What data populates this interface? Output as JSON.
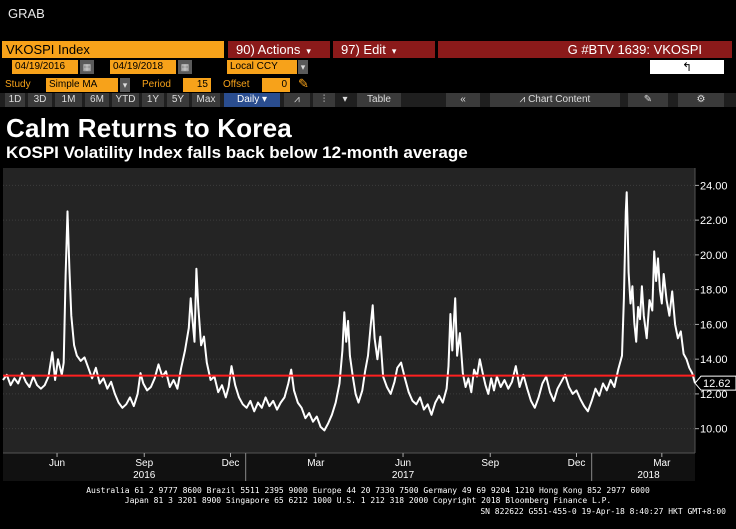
{
  "app": {
    "grab_label": "GRAB"
  },
  "header": {
    "ticker": "VKOSPI Index",
    "actions_label": "90) Actions",
    "edit_label": "97) Edit",
    "caret": "▾",
    "code": "G #BTV 1639: VKOSPI",
    "back_label": "↰"
  },
  "range": {
    "start_date": "04/19/2016",
    "end_date": "04/19/2018",
    "currency": "Local CCY"
  },
  "study": {
    "study_label": "Study",
    "study_value": "Simple MA",
    "period_label": "Period",
    "period_value": "15",
    "offset_label": "Offset",
    "offset_value": "0"
  },
  "toolbar": {
    "ranges": [
      "1D",
      "3D",
      "1M",
      "6M",
      "YTD",
      "1Y",
      "5Y",
      "Max"
    ],
    "frequency": "Daily",
    "table_label": "Table",
    "collapse_label": "«",
    "chart_content_label": "Chart Content"
  },
  "chart_data": {
    "type": "line",
    "title": "Calm Returns to Korea",
    "subtitle": "KOSPI Volatility Index falls back below 12-month average",
    "x_start": "2016-04-19",
    "x_end": "2018-04-19",
    "ylim": [
      8.6,
      25.0
    ],
    "yticks": [
      "24.00",
      "22.00",
      "20.00",
      "18.00",
      "16.00",
      "14.00",
      "12.00",
      "10.00"
    ],
    "month_labels": [
      {
        "label": "Jun",
        "date": "2016-06-15"
      },
      {
        "label": "Sep",
        "date": "2016-09-15"
      },
      {
        "label": "Dec",
        "date": "2016-12-15"
      },
      {
        "label": "Mar",
        "date": "2017-03-15"
      },
      {
        "label": "Jun",
        "date": "2017-06-15"
      },
      {
        "label": "Sep",
        "date": "2017-09-15"
      },
      {
        "label": "Dec",
        "date": "2017-12-15"
      },
      {
        "label": "Mar",
        "date": "2018-03-15"
      }
    ],
    "year_labels": [
      {
        "label": "2016",
        "date": "2016-09-15"
      },
      {
        "label": "2017",
        "date": "2017-06-15"
      },
      {
        "label": "2018",
        "date": "2018-03-01"
      }
    ],
    "year_separators": [
      "2016-12-31",
      "2017-12-31"
    ],
    "average_line": {
      "value": 13.05,
      "color": "#ff2020"
    },
    "last_value_label": "12.62",
    "series": [
      {
        "color": "#ffffff",
        "points": [
          [
            "2016-04-19",
            12.8
          ],
          [
            "2016-04-23",
            13.1
          ],
          [
            "2016-04-27",
            12.5
          ],
          [
            "2016-05-01",
            12.9
          ],
          [
            "2016-05-05",
            12.6
          ],
          [
            "2016-05-09",
            13.2
          ],
          [
            "2016-05-13",
            12.7
          ],
          [
            "2016-05-17",
            12.4
          ],
          [
            "2016-05-21",
            13.0
          ],
          [
            "2016-05-25",
            12.5
          ],
          [
            "2016-05-29",
            12.3
          ],
          [
            "2016-06-02",
            12.5
          ],
          [
            "2016-06-06",
            13.0
          ],
          [
            "2016-06-10",
            14.4
          ],
          [
            "2016-06-13",
            12.8
          ],
          [
            "2016-06-16",
            14.0
          ],
          [
            "2016-06-20",
            13.1
          ],
          [
            "2016-06-22",
            13.8
          ],
          [
            "2016-06-24",
            18.8
          ],
          [
            "2016-06-26",
            22.5
          ],
          [
            "2016-06-28",
            19.2
          ],
          [
            "2016-06-30",
            16.5
          ],
          [
            "2016-07-03",
            14.8
          ],
          [
            "2016-07-06",
            14.2
          ],
          [
            "2016-07-10",
            13.9
          ],
          [
            "2016-07-14",
            14.1
          ],
          [
            "2016-07-18",
            13.5
          ],
          [
            "2016-07-22",
            12.9
          ],
          [
            "2016-07-26",
            13.5
          ],
          [
            "2016-07-30",
            12.6
          ],
          [
            "2016-08-03",
            12.9
          ],
          [
            "2016-08-07",
            12.3
          ],
          [
            "2016-08-11",
            12.7
          ],
          [
            "2016-08-15",
            12.0
          ],
          [
            "2016-08-19",
            11.5
          ],
          [
            "2016-08-23",
            11.2
          ],
          [
            "2016-08-27",
            11.4
          ],
          [
            "2016-08-31",
            11.8
          ],
          [
            "2016-09-04",
            11.3
          ],
          [
            "2016-09-08",
            12.0
          ],
          [
            "2016-09-11",
            13.2
          ],
          [
            "2016-09-14",
            12.6
          ],
          [
            "2016-09-18",
            12.2
          ],
          [
            "2016-09-22",
            12.4
          ],
          [
            "2016-09-26",
            12.9
          ],
          [
            "2016-09-30",
            13.7
          ],
          [
            "2016-10-04",
            13.0
          ],
          [
            "2016-10-08",
            13.3
          ],
          [
            "2016-10-12",
            12.4
          ],
          [
            "2016-10-16",
            12.8
          ],
          [
            "2016-10-20",
            12.3
          ],
          [
            "2016-10-24",
            13.5
          ],
          [
            "2016-10-28",
            14.5
          ],
          [
            "2016-11-01",
            15.8
          ],
          [
            "2016-11-03",
            17.5
          ],
          [
            "2016-11-05",
            16.2
          ],
          [
            "2016-11-07",
            15.0
          ],
          [
            "2016-11-09",
            19.2
          ],
          [
            "2016-11-11",
            17.0
          ],
          [
            "2016-11-14",
            14.8
          ],
          [
            "2016-11-17",
            15.3
          ],
          [
            "2016-11-20",
            13.8
          ],
          [
            "2016-11-24",
            12.8
          ],
          [
            "2016-11-28",
            13.0
          ],
          [
            "2016-12-02",
            12.1
          ],
          [
            "2016-12-06",
            12.5
          ],
          [
            "2016-12-10",
            11.8
          ],
          [
            "2016-12-13",
            12.4
          ],
          [
            "2016-12-16",
            13.6
          ],
          [
            "2016-12-20",
            12.5
          ],
          [
            "2016-12-24",
            11.8
          ],
          [
            "2016-12-28",
            11.4
          ],
          [
            "2017-01-01",
            11.2
          ],
          [
            "2017-01-05",
            11.6
          ],
          [
            "2017-01-09",
            11.0
          ],
          [
            "2017-01-13",
            11.5
          ],
          [
            "2017-01-17",
            11.2
          ],
          [
            "2017-01-21",
            11.8
          ],
          [
            "2017-01-25",
            11.3
          ],
          [
            "2017-01-29",
            11.6
          ],
          [
            "2017-02-02",
            11.1
          ],
          [
            "2017-02-06",
            11.5
          ],
          [
            "2017-02-10",
            11.8
          ],
          [
            "2017-02-14",
            12.6
          ],
          [
            "2017-02-17",
            13.4
          ],
          [
            "2017-02-20",
            12.2
          ],
          [
            "2017-02-24",
            11.5
          ],
          [
            "2017-02-28",
            11.2
          ],
          [
            "2017-03-04",
            10.6
          ],
          [
            "2017-03-08",
            10.9
          ],
          [
            "2017-03-12",
            10.4
          ],
          [
            "2017-03-16",
            10.7
          ],
          [
            "2017-03-20",
            10.1
          ],
          [
            "2017-03-24",
            9.9
          ],
          [
            "2017-03-28",
            10.3
          ],
          [
            "2017-04-01",
            10.8
          ],
          [
            "2017-04-05",
            11.5
          ],
          [
            "2017-04-09",
            12.6
          ],
          [
            "2017-04-12",
            14.5
          ],
          [
            "2017-04-14",
            16.7
          ],
          [
            "2017-04-16",
            15.0
          ],
          [
            "2017-04-18",
            16.2
          ],
          [
            "2017-04-20",
            14.2
          ],
          [
            "2017-04-23",
            13.0
          ],
          [
            "2017-04-26",
            12.0
          ],
          [
            "2017-04-29",
            11.5
          ],
          [
            "2017-05-03",
            12.2
          ],
          [
            "2017-05-06",
            13.3
          ],
          [
            "2017-05-09",
            14.2
          ],
          [
            "2017-05-12",
            16.0
          ],
          [
            "2017-05-14",
            17.1
          ],
          [
            "2017-05-16",
            15.2
          ],
          [
            "2017-05-19",
            14.0
          ],
          [
            "2017-05-22",
            15.3
          ],
          [
            "2017-05-25",
            13.0
          ],
          [
            "2017-05-29",
            12.4
          ],
          [
            "2017-06-02",
            12.0
          ],
          [
            "2017-06-06",
            12.7
          ],
          [
            "2017-06-09",
            13.5
          ],
          [
            "2017-06-13",
            13.8
          ],
          [
            "2017-06-17",
            12.9
          ],
          [
            "2017-06-21",
            12.1
          ],
          [
            "2017-06-25",
            11.6
          ],
          [
            "2017-06-29",
            11.4
          ],
          [
            "2017-07-03",
            11.8
          ],
          [
            "2017-07-07",
            11.1
          ],
          [
            "2017-07-11",
            11.4
          ],
          [
            "2017-07-15",
            10.8
          ],
          [
            "2017-07-19",
            11.5
          ],
          [
            "2017-07-23",
            11.9
          ],
          [
            "2017-07-27",
            11.5
          ],
          [
            "2017-07-31",
            12.3
          ],
          [
            "2017-08-02",
            13.6
          ],
          [
            "2017-08-04",
            16.6
          ],
          [
            "2017-08-06",
            14.5
          ],
          [
            "2017-08-09",
            17.5
          ],
          [
            "2017-08-11",
            14.2
          ],
          [
            "2017-08-14",
            15.5
          ],
          [
            "2017-08-17",
            13.2
          ],
          [
            "2017-08-20",
            12.4
          ],
          [
            "2017-08-23",
            12.9
          ],
          [
            "2017-08-26",
            12.1
          ],
          [
            "2017-08-29",
            13.4
          ],
          [
            "2017-09-01",
            13.0
          ],
          [
            "2017-09-04",
            14.0
          ],
          [
            "2017-09-07",
            13.2
          ],
          [
            "2017-09-10",
            12.5
          ],
          [
            "2017-09-13",
            12.0
          ],
          [
            "2017-09-16",
            12.9
          ],
          [
            "2017-09-19",
            12.2
          ],
          [
            "2017-09-22",
            13.0
          ],
          [
            "2017-09-26",
            12.4
          ],
          [
            "2017-09-30",
            12.8
          ],
          [
            "2017-10-04",
            12.3
          ],
          [
            "2017-10-08",
            12.7
          ],
          [
            "2017-10-12",
            13.6
          ],
          [
            "2017-10-16",
            12.4
          ],
          [
            "2017-10-20",
            13.1
          ],
          [
            "2017-10-24",
            12.3
          ],
          [
            "2017-10-28",
            11.6
          ],
          [
            "2017-11-01",
            11.2
          ],
          [
            "2017-11-05",
            11.8
          ],
          [
            "2017-11-09",
            12.6
          ],
          [
            "2017-11-13",
            13.0
          ],
          [
            "2017-11-17",
            12.1
          ],
          [
            "2017-11-21",
            11.6
          ],
          [
            "2017-11-25",
            12.3
          ],
          [
            "2017-11-29",
            12.7
          ],
          [
            "2017-12-03",
            13.1
          ],
          [
            "2017-12-07",
            12.4
          ],
          [
            "2017-12-11",
            12.0
          ],
          [
            "2017-12-15",
            12.2
          ],
          [
            "2017-12-19",
            11.7
          ],
          [
            "2017-12-23",
            11.3
          ],
          [
            "2017-12-27",
            11.0
          ],
          [
            "2017-12-31",
            11.6
          ],
          [
            "2018-01-04",
            12.3
          ],
          [
            "2018-01-08",
            11.9
          ],
          [
            "2018-01-12",
            12.6
          ],
          [
            "2018-01-16",
            12.2
          ],
          [
            "2018-01-20",
            12.8
          ],
          [
            "2018-01-24",
            12.4
          ],
          [
            "2018-01-28",
            13.4
          ],
          [
            "2018-02-01",
            14.2
          ],
          [
            "2018-02-03",
            17.5
          ],
          [
            "2018-02-05",
            22.5
          ],
          [
            "2018-02-06",
            23.6
          ],
          [
            "2018-02-07",
            21.5
          ],
          [
            "2018-02-08",
            19.0
          ],
          [
            "2018-02-10",
            17.2
          ],
          [
            "2018-02-12",
            18.2
          ],
          [
            "2018-02-14",
            16.1
          ],
          [
            "2018-02-16",
            15.0
          ],
          [
            "2018-02-18",
            17.0
          ],
          [
            "2018-02-20",
            16.3
          ],
          [
            "2018-02-22",
            18.2
          ],
          [
            "2018-02-24",
            16.5
          ],
          [
            "2018-02-27",
            15.2
          ],
          [
            "2018-03-02",
            17.4
          ],
          [
            "2018-03-05",
            16.8
          ],
          [
            "2018-03-07",
            20.2
          ],
          [
            "2018-03-09",
            18.5
          ],
          [
            "2018-03-11",
            19.8
          ],
          [
            "2018-03-13",
            18.0
          ],
          [
            "2018-03-15",
            17.2
          ],
          [
            "2018-03-17",
            18.9
          ],
          [
            "2018-03-20",
            17.4
          ],
          [
            "2018-03-23",
            16.5
          ],
          [
            "2018-03-26",
            17.9
          ],
          [
            "2018-03-29",
            16.0
          ],
          [
            "2018-04-01",
            15.2
          ],
          [
            "2018-04-04",
            15.6
          ],
          [
            "2018-04-07",
            14.3
          ],
          [
            "2018-04-10",
            14.0
          ],
          [
            "2018-04-13",
            13.5
          ],
          [
            "2018-04-16",
            13.2
          ],
          [
            "2018-04-19",
            12.62
          ]
        ]
      }
    ]
  },
  "footer": {
    "line1": "Australia 61 2 9777 8600 Brazil 5511 2395 9000 Europe 44 20 7330 7500 Germany 49 69 9204 1210 Hong Kong 852 2977 6000",
    "line2": "Japan 81 3 3201 8900        Singapore 65 6212 1000        U.S. 1 212 318 2000              Copyright 2018 Bloomberg Finance L.P.",
    "line3": "SN 822622 G551-455-0 19-Apr-18  8:40:27 HKT  GMT+8:00"
  },
  "colors": {
    "accent_orange": "#f7a21a",
    "header_red": "#8b1a1a",
    "chart_bg": "#242424",
    "average_line": "#ff2020",
    "series_line": "#ffffff"
  }
}
